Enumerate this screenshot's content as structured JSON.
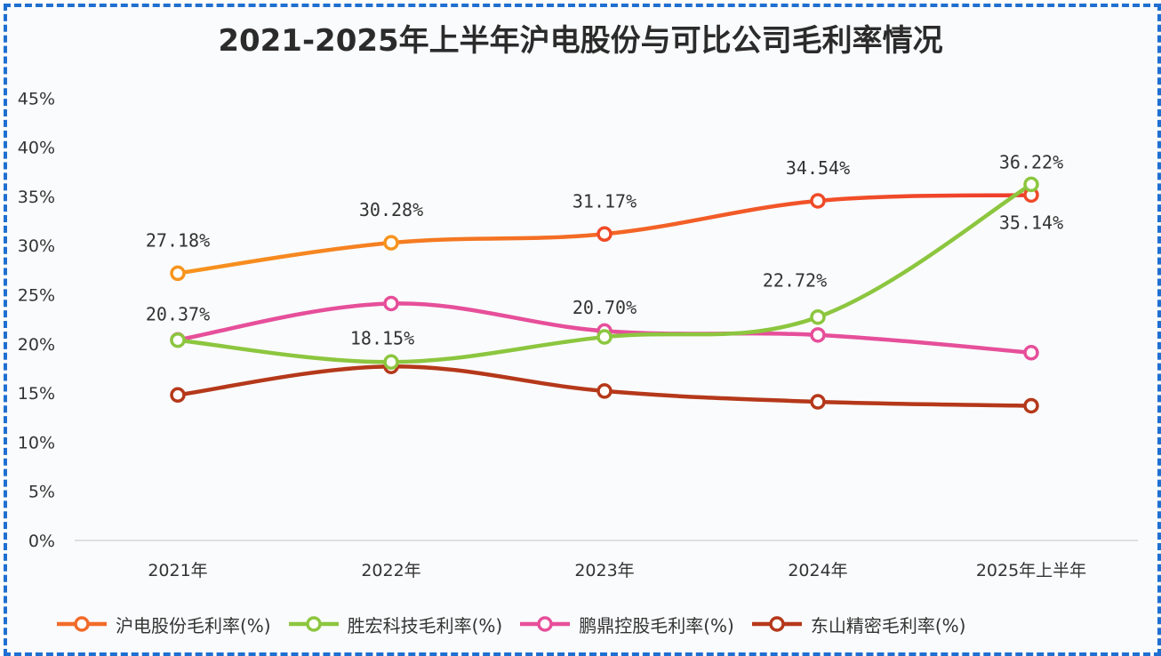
{
  "chart_data": {
    "type": "line",
    "title": "2021-2025年上半年沪电股份与可比公司毛利率情况",
    "categories": [
      "2021年",
      "2022年",
      "2023年",
      "2024年",
      "2025年上半年"
    ],
    "ylim": [
      0,
      45
    ],
    "yticks": [
      "0%",
      "5%",
      "10%",
      "15%",
      "20%",
      "25%",
      "30%",
      "35%",
      "40%",
      "45%"
    ],
    "grid": false,
    "legend_position": "bottom",
    "series": [
      {
        "name": "沪电股份毛利率(%)",
        "color": "#f26b2a",
        "values": [
          27.18,
          30.28,
          31.17,
          34.54,
          35.14
        ],
        "labels": [
          "27.18%",
          "30.28%",
          "31.17%",
          "34.54%",
          "35.14%"
        ]
      },
      {
        "name": "胜宏科技毛利率(%)",
        "color": "#8cc63f",
        "values": [
          20.37,
          18.15,
          20.7,
          22.72,
          36.22
        ],
        "labels": [
          "20.37%",
          "18.15%",
          "20.70%",
          "22.72%",
          "36.22%"
        ]
      },
      {
        "name": "鹏鼎控股毛利率(%)",
        "color": "#e64f9a",
        "values": [
          20.4,
          24.1,
          21.3,
          20.9,
          19.1
        ],
        "labels": []
      },
      {
        "name": "东山精密毛利率(%)",
        "color": "#b5381a",
        "values": [
          14.8,
          17.7,
          15.2,
          14.1,
          13.7
        ],
        "labels": []
      }
    ]
  }
}
